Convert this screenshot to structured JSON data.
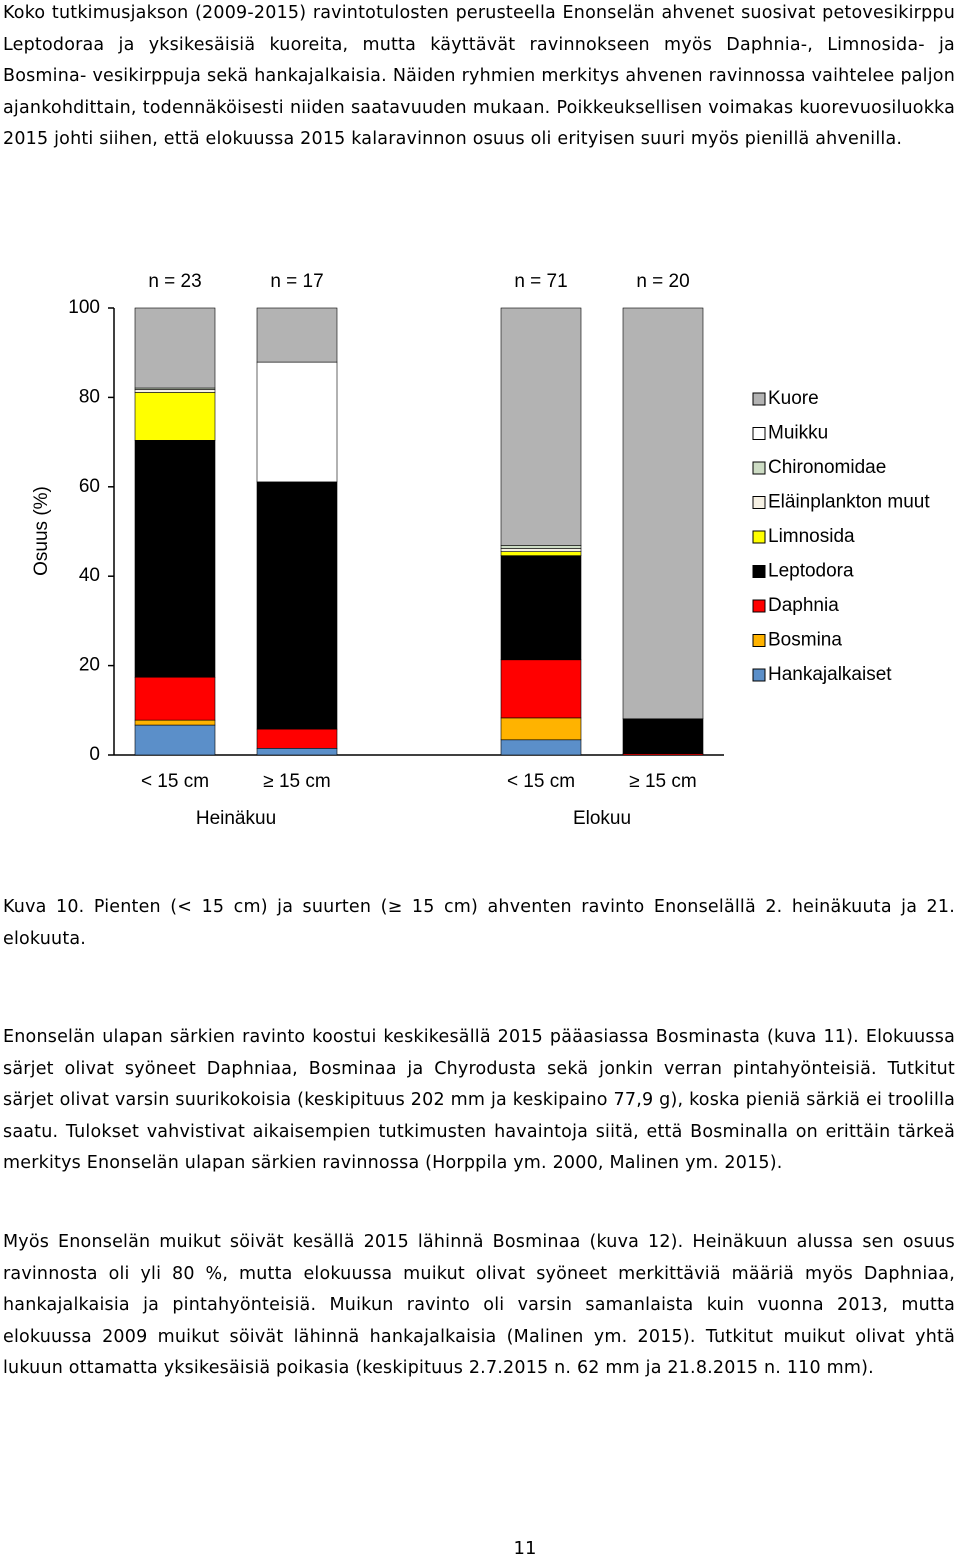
{
  "intro": "Koko tutkimusjakson (2009-2015) ravintotulosten perusteella Enonselän ahvenet suosivat petovesikirppu Leptodoraa ja yksikesäisiä kuoreita, mutta käyttävät ravinnokseen myös Daphnia-, Limnosida- ja Bosmina- vesikirppuja sekä hankajalkaisia. Näiden ryhmien merkitys ahvenen ravinnossa vaihtelee paljon ajankohdittain, todennäköisesti niiden saatavuuden mukaan. Poikkeuksellisen voimakas kuorevuosiluokka 2015 johti siihen, että elokuussa 2015 kalaravinnon osuus oli erityisen suuri myös pienillä ahvenilla.",
  "chart_data": {
    "type": "bar",
    "stacked": true,
    "y_label": "Osuus (%)",
    "categories": [
      "< 15 cm",
      "≥ 15 cm",
      null,
      "< 15 cm",
      "≥ 15 cm"
    ],
    "n_labels": [
      "n = 23",
      "n = 17",
      null,
      "n = 71",
      "n = 20"
    ],
    "groups": [
      "Heinäkuu",
      "Elokuu"
    ],
    "ylim": [
      0,
      100
    ],
    "yticks": [
      0,
      20,
      40,
      60,
      80,
      100
    ],
    "series": [
      {
        "name": "Hankajalkaiset",
        "color": "#5b8fc9",
        "values": [
          6.7,
          1.5,
          null,
          3.4,
          0
        ]
      },
      {
        "name": "Bosmina",
        "color": "#ffb300",
        "values": [
          1.1,
          0,
          null,
          4.9,
          0
        ]
      },
      {
        "name": "Daphnia",
        "color": "#ff0000",
        "values": [
          9.6,
          4.3,
          null,
          13,
          0.3
        ]
      },
      {
        "name": "Leptodora",
        "color": "#000000",
        "values": [
          53,
          55.3,
          null,
          23.3,
          7.8
        ]
      },
      {
        "name": "Limnosida",
        "color": "#ffff00",
        "values": [
          10.7,
          0,
          null,
          0.9,
          0
        ]
      },
      {
        "name": "Eläinplankton muut",
        "color": "#f6f1e4",
        "values": [
          0.7,
          0,
          null,
          0.7,
          0
        ]
      },
      {
        "name": "Chironomidae",
        "color": "#cddcc4",
        "values": [
          0.3,
          0,
          null,
          0.7,
          0
        ]
      },
      {
        "name": "Muikku",
        "color": "#ffffff",
        "values": [
          0,
          26.8,
          null,
          0,
          0
        ]
      },
      {
        "name": "Kuore",
        "color": "#b3b3b3",
        "values": [
          17.9,
          12.1,
          null,
          53.1,
          91.9
        ]
      }
    ]
  },
  "caption": "Kuva 10. Pienten (< 15 cm) ja suurten (≥ 15 cm) ahventen ravinto Enonselällä 2. heinäkuuta ja 21. elokuuta.",
  "paragraphs": [
    "Enonselän ulapan särkien ravinto koostui keskikesällä 2015 pääasiassa Bosminasta (kuva 11). Elokuussa särjet olivat syöneet Daphniaa, Bosminaa ja Chyrodusta sekä jonkin verran pintahyönteisiä. Tutkitut särjet olivat varsin suurikokoisia (keskipituus 202 mm ja keskipaino 77,9 g), koska pieniä särkiä ei troolilla saatu. Tulokset vahvistivat aikaisempien tutkimusten havaintoja siitä, että Bosminalla on erittäin tärkeä merkitys Enonselän ulapan särkien ravinnossa (Horppila ym. 2000, Malinen ym. 2015).",
    "Myös Enonselän muikut söivät kesällä 2015 lähinnä Bosminaa (kuva 12). Heinäkuun alussa sen osuus ravinnosta oli yli 80 %, mutta elokuussa muikut olivat syöneet merkittäviä määriä myös Daphniaa, hankajalkaisia ja pintahyönteisiä. Muikun ravinto oli varsin samanlaista kuin vuonna 2013, mutta elokuussa 2009 muikut söivät lähinnä hankajalkaisia (Malinen ym. 2015). Tutkitut muikut olivat yhtä lukuun ottamatta yksikesäisiä poikasia (keskipituus 2.7.2015 n. 62 mm ja 21.8.2015 n. 110 mm)."
  ],
  "page_number": "11"
}
